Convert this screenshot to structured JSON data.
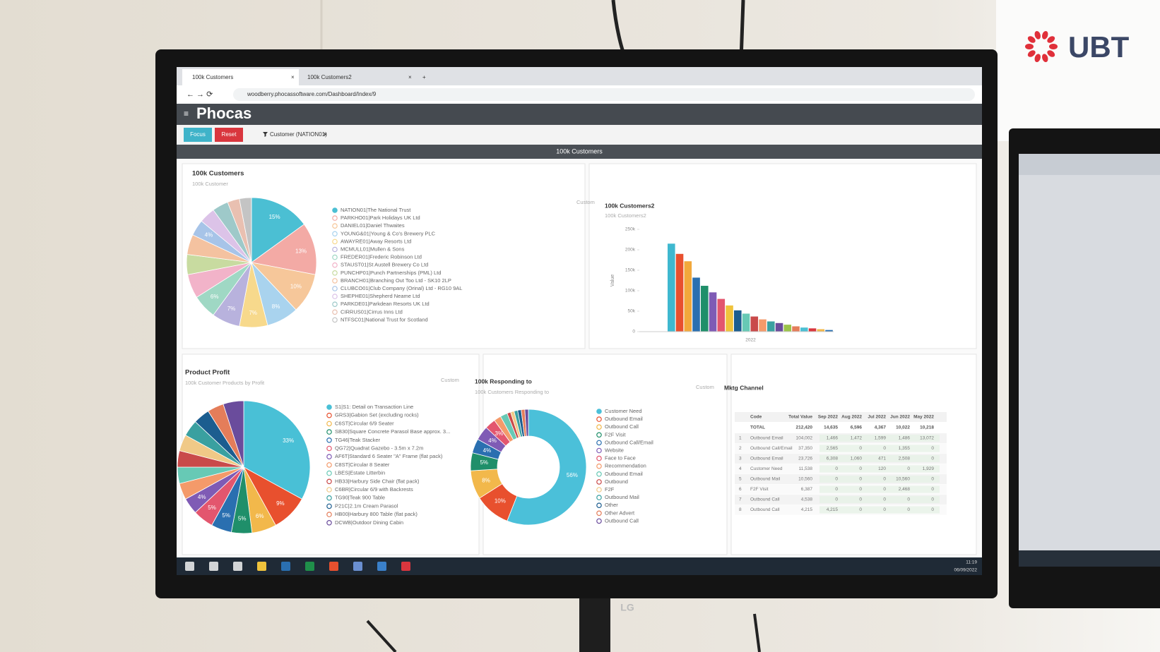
{
  "logo": {
    "text": "UBT"
  },
  "browser": {
    "tabs": [
      "100k Customers",
      "100k Customers2"
    ],
    "url": "woodberry.phocassoftware.com/Dashboard/Index/9"
  },
  "app": {
    "brand": "Phocas",
    "buttons": [
      "Focus",
      "Reset"
    ],
    "filter": "Customer (NATION01)",
    "dashboard_title": "100k Customers"
  },
  "panels": {
    "customers": {
      "title": "100k Customers",
      "subtitle": "100k Customer",
      "chart": {
        "type": "pie",
        "values": [
          15,
          13,
          10,
          8,
          7,
          7,
          6,
          6,
          5,
          5,
          4,
          4,
          4,
          3,
          3
        ],
        "value_labels": [
          "15%",
          "13%",
          "10%",
          "8%",
          "7%",
          "7%",
          "6%",
          null,
          null,
          null,
          "4%",
          null,
          null,
          null,
          null
        ],
        "colors": [
          "#4bbfd3",
          "#f3aaa5",
          "#f6c79a",
          "#a9d3ee",
          "#f7d98c",
          "#b8b2dd",
          "#9fd8c4",
          "#f2b3c9",
          "#c8dba0",
          "#f4c2a0",
          "#a7c4e8",
          "#dcc3e8",
          "#9ec9c9",
          "#e9c0b1",
          "#c4c4c4"
        ]
      },
      "legend": [
        "NATION01|The National Trust",
        "PARKHO01|Park Holidays UK Ltd",
        "DANIEL01|Daniel Thwaites",
        "YOUNG&01|Young & Co's Brewery PLC",
        "AWAYRE01|Away Resorts Ltd",
        "MCMULL01|Mullen & Sons",
        "FREDER01|Frederic Robinson Ltd",
        "STAUST01|St Austell Brewery Co Ltd",
        "PUNCHP01|Punch Partnerships (PML) Ltd",
        "BRANCH01|Branching Out Too Ltd - SK10 2LP",
        "CLUBCO01|Club Company (Orinal) Ltd - RG10 9AL",
        "SHEPHE01|Shepherd Neame Ltd",
        "PARKDE01|Parkdean Resorts UK Ltd",
        "CIRRUS01|Cirrus Inns Ltd",
        "NTFSC01|National Trust for Scotland"
      ]
    },
    "customers2": {
      "title": "100k Customers2",
      "subtitle": "100k Customers2",
      "mode": "Custom",
      "chart": {
        "type": "bar",
        "y_label": "Value",
        "categories": [
          "2022"
        ],
        "values": [
          215000,
          190000,
          172000,
          132000,
          112000,
          96000,
          80000,
          64000,
          52000,
          44000,
          37000,
          30000,
          25000,
          21000,
          17000,
          13000,
          10000,
          8000,
          6000,
          4000
        ],
        "colors": [
          "#3fb8cf",
          "#e8502e",
          "#f2a83b",
          "#2a6fb0",
          "#1f8f6a",
          "#7f5bb5",
          "#e3566e",
          "#f0c33c",
          "#1c5d8f",
          "#67c9b5",
          "#c94a4a",
          "#f49a6a",
          "#3aa0a0",
          "#6a4c9c",
          "#9bc34a",
          "#e47d5a",
          "#4bbfd3",
          "#d9363e",
          "#f2b84b",
          "#2a6fb0"
        ],
        "ylim": [
          0,
          250000
        ],
        "yticks": [
          0,
          {
            "value": 50000,
            "label": "50k"
          },
          {
            "value": 100000,
            "label": "100k"
          },
          {
            "value": 150000,
            "label": "150k"
          },
          {
            "value": 200000,
            "label": "200k"
          },
          {
            "value": 250000,
            "label": "250k"
          }
        ],
        "grid": false
      }
    },
    "product_profit": {
      "title": "Product Profit",
      "subtitle": "100k Customer Products by Profit",
      "chart": {
        "type": "pie",
        "values": [
          33,
          9,
          6,
          5,
          5,
          5,
          4,
          4,
          4,
          4,
          4,
          4,
          4,
          4,
          5
        ],
        "value_labels": [
          "33%",
          "9%",
          "6%",
          "5%",
          "5%",
          "5%",
          "4%",
          null,
          null,
          null,
          null,
          null,
          null,
          null,
          null
        ],
        "colors": [
          "#49c0d6",
          "#e8502e",
          "#f2b84b",
          "#1f8f6a",
          "#2a6fb0",
          "#e3566e",
          "#7f5bb5",
          "#f49a6a",
          "#67c9b5",
          "#c94a4a",
          "#f0c987",
          "#3aa0a0",
          "#1c5d8f",
          "#e47d5a",
          "#6a4c9c"
        ]
      },
      "legend": [
        "S1|S1: Detail on Transaction Line",
        "GRS3|Gabion Set (excluding rocks)",
        "C6ST|Circular 6/9 Seater",
        "SB30|Square Concrete Parasol Base approx. 3...",
        "TG46|Teak Stacker",
        "QG72|Quadrat Gazebo - 3.5m x 7.2m",
        "AF6T|Standard 6 Seater \"A\" Frame (flat pack)",
        "C8ST|Circular 8 Seater",
        "LBES|Estate Litterbin",
        "HB33|Harbury Side Chair (flat pack)",
        "C6BR|Circular 6/9 with Backrests",
        "TG90|Teak 900 Table",
        "P21C|2.1m Cream Parasol",
        "HB00|Harbury 800 Table (flat pack)",
        "DCWB|Outdoor Dining Cabin"
      ]
    },
    "responding": {
      "title": "100k Responding to",
      "subtitle": "100k Customers Responding to",
      "mode": "Custom",
      "chart": {
        "type": "donut",
        "values": [
          56,
          10,
          8,
          5,
          4,
          4,
          3,
          2,
          2,
          1,
          1,
          1,
          1,
          1,
          1
        ],
        "value_labels": [
          "56%",
          "10%",
          "8%",
          "5%",
          "4%",
          "4%",
          "3%",
          null,
          null,
          null,
          null,
          null,
          null,
          null,
          null
        ],
        "colors": [
          "#4bc0d9",
          "#e8502e",
          "#f2b84b",
          "#1f8f6a",
          "#2a6fb0",
          "#7f5bb5",
          "#e3566e",
          "#f49a6a",
          "#67c9b5",
          "#c94a4a",
          "#f0c987",
          "#3aa0a0",
          "#1c5d8f",
          "#e47d5a",
          "#6a4c9c"
        ]
      },
      "legend": [
        "Customer Need",
        "Outbound Email",
        "Outbound Call",
        "F2F Visit",
        "Outbound Call/Email",
        "Website",
        "Face to Face",
        "Recommendation",
        "Outbound Email",
        "Outbound",
        "F2F",
        "Outbound Mail",
        "Other",
        "Other Advert",
        "Outbound Call"
      ]
    },
    "mktg_channel": {
      "title": "Mktg Channel",
      "mode": "Custom",
      "table": {
        "headers": [
          "Code",
          "Total Value",
          "Sep 2022",
          "Aug 2022",
          "Jul 2022",
          "Jun 2022",
          "May 2022"
        ],
        "total": [
          "TOTAL",
          "212,420",
          "14,635",
          "6,596",
          "4,367",
          "10,022",
          "10,218"
        ],
        "rows": [
          [
            "1",
            "Outbound Email",
            "104,002",
            "1,466",
            "1,472",
            "1,599",
            "1,486",
            "13,072"
          ],
          [
            "2",
            "Outbound Call/Email",
            "37,350",
            "2,565",
            "0",
            "0",
            "1,355",
            "0"
          ],
          [
            "3",
            "Outbound Email",
            "23,726",
            "6,308",
            "1,060",
            "471",
            "2,508",
            "0"
          ],
          [
            "4",
            "Customer Need",
            "11,538",
            "0",
            "0",
            "120",
            "0",
            "1,929"
          ],
          [
            "5",
            "Outbound Mail",
            "10,560",
            "0",
            "0",
            "0",
            "10,560",
            "0"
          ],
          [
            "6",
            "F2F Visit",
            "6,387",
            "0",
            "0",
            "0",
            "2,468",
            "0"
          ],
          [
            "7",
            "Outbound Call",
            "4,538",
            "0",
            "0",
            "0",
            "0",
            "0"
          ],
          [
            "8",
            "Outbound Call",
            "4,215",
            "4,215",
            "0",
            "0",
            "0",
            "0"
          ]
        ]
      }
    }
  },
  "monitor": {
    "brand": "LG"
  },
  "taskbar": {
    "time": "11:19",
    "date": "06/09/2022"
  }
}
